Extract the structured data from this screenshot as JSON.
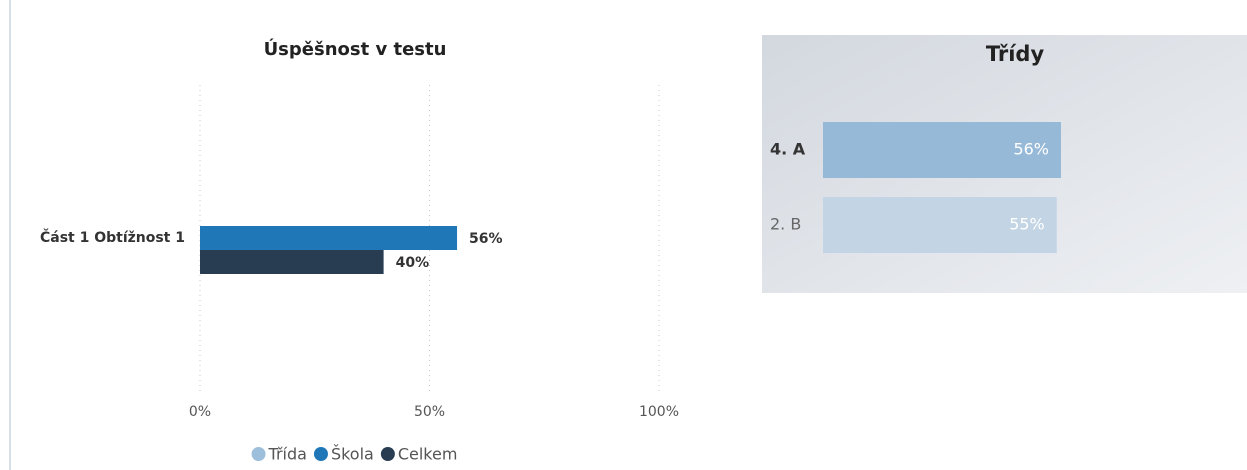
{
  "chart_data": [
    {
      "type": "hbar",
      "title": "Úspěšnost v testu",
      "categories": [
        "Část 1 Obtížnost 1"
      ],
      "series": [
        {
          "name": "Třída",
          "color": "#9dbfdc",
          "values": [
            null
          ]
        },
        {
          "name": "Škola",
          "color": "#1f77b8",
          "values": [
            56
          ],
          "value_labels": [
            "56%"
          ]
        },
        {
          "name": "Celkem",
          "color": "#283d52",
          "values": [
            40
          ],
          "value_labels": [
            "40%"
          ]
        }
      ],
      "xlim": [
        0,
        100
      ],
      "xticks": [
        {
          "value": 0,
          "label": "0%"
        },
        {
          "value": 50,
          "label": "50%"
        },
        {
          "value": 100,
          "label": "100%"
        }
      ],
      "grid": true,
      "legend": "bottom"
    },
    {
      "type": "hbar-simple",
      "title": "Třídy",
      "categories": [
        "4. A",
        "2. B"
      ],
      "values": [
        56,
        55
      ],
      "value_labels": [
        "56%",
        "55%"
      ],
      "colors": [
        "#97b9d8",
        "#c3d4e5"
      ]
    }
  ]
}
